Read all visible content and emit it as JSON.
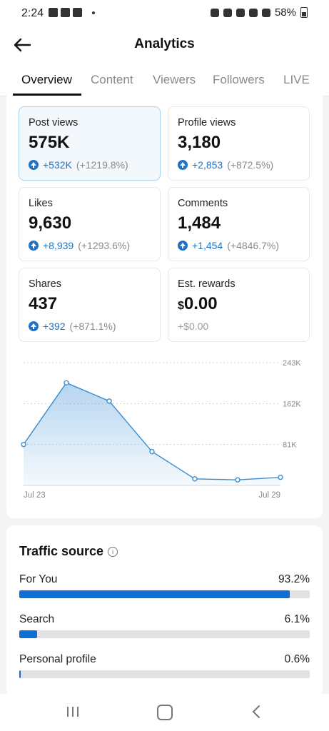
{
  "status": {
    "time": "2:24",
    "battery": "58%"
  },
  "header": {
    "title": "Analytics"
  },
  "tabs": [
    "Overview",
    "Content",
    "Viewers",
    "Followers",
    "LIVE"
  ],
  "stats": [
    {
      "label": "Post views",
      "value": "575K",
      "delta": "+532K",
      "pct": "(+1219.8%)"
    },
    {
      "label": "Profile views",
      "value": "3,180",
      "delta": "+2,853",
      "pct": "(+872.5%)"
    },
    {
      "label": "Likes",
      "value": "9,630",
      "delta": "+8,939",
      "pct": "(+1293.6%)"
    },
    {
      "label": "Comments",
      "value": "1,484",
      "delta": "+1,454",
      "pct": "(+4846.7%)"
    },
    {
      "label": "Shares",
      "value": "437",
      "delta": "+392",
      "pct": "(+871.1%)"
    },
    {
      "label": "Est. rewards",
      "currency": "$",
      "value": "0.00",
      "change": "+$0.00"
    }
  ],
  "chart_data": {
    "type": "area",
    "x": [
      "Jul 23",
      "Jul 24",
      "Jul 25",
      "Jul 26",
      "Jul 27",
      "Jul 28",
      "Jul 29"
    ],
    "values": [
      81000,
      203000,
      167000,
      67000,
      13000,
      11000,
      16000
    ],
    "ylim": [
      0,
      243000
    ],
    "y_ticks": [
      "243K",
      "162K",
      "81K"
    ],
    "x_tick_labels": [
      "Jul 23",
      "Jul 29"
    ],
    "color": "#3a8dd0"
  },
  "traffic": {
    "title": "Traffic source",
    "items": [
      {
        "name": "For You",
        "pct": "93.2%",
        "fraction": 0.932
      },
      {
        "name": "Search",
        "pct": "6.1%",
        "fraction": 0.061
      },
      {
        "name": "Personal profile",
        "pct": "0.6%",
        "fraction": 0.006
      }
    ]
  }
}
